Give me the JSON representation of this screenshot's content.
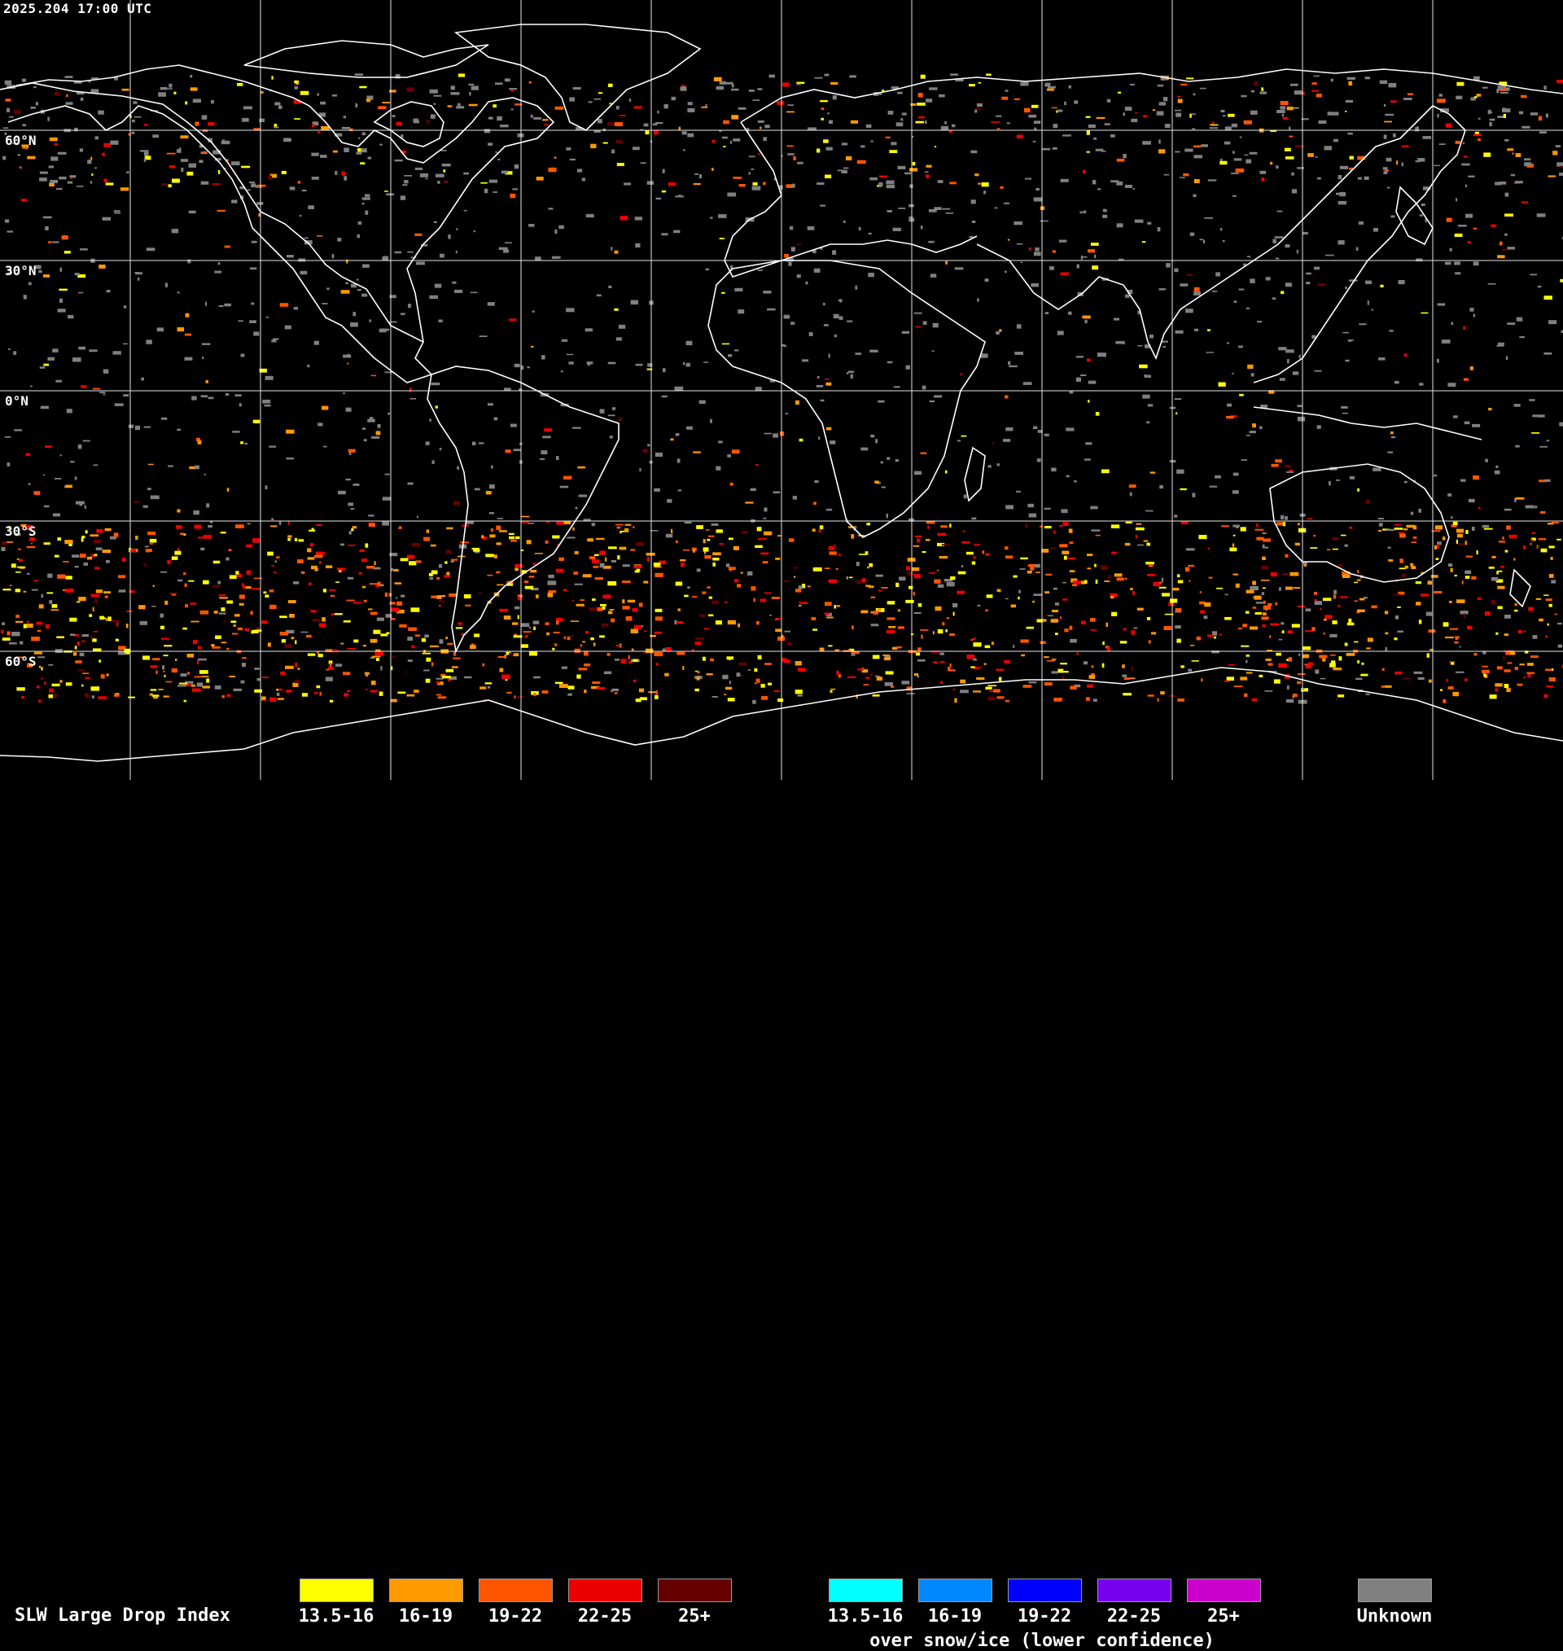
{
  "header": {
    "timestamp": "2025.204 17:00 UTC"
  },
  "map": {
    "latitude_labels": [
      "60°N",
      "30°N",
      "0°N",
      "30°S",
      "60°S"
    ],
    "grid_color": "#ffffff",
    "coast_color": "#ffffff"
  },
  "legend": {
    "title": "SLW Large Drop Index",
    "primary": [
      {
        "label": "13.5-16",
        "color": "#ffff00"
      },
      {
        "label": "16-19",
        "color": "#ff9900"
      },
      {
        "label": "19-22",
        "color": "#ff5500"
      },
      {
        "label": "22-25",
        "color": "#ee0000"
      },
      {
        "label": "25+",
        "color": "#660000"
      }
    ],
    "snow_ice": [
      {
        "label": "13.5-16",
        "color": "#00ffff"
      },
      {
        "label": "16-19",
        "color": "#0088ff"
      },
      {
        "label": "19-22",
        "color": "#0000ff"
      },
      {
        "label": "22-25",
        "color": "#7700ee"
      },
      {
        "label": "25+",
        "color": "#cc00cc"
      }
    ],
    "snow_ice_note": "over snow/ice (lower confidence)",
    "unknown": {
      "label": "Unknown",
      "color": "#808080"
    }
  }
}
